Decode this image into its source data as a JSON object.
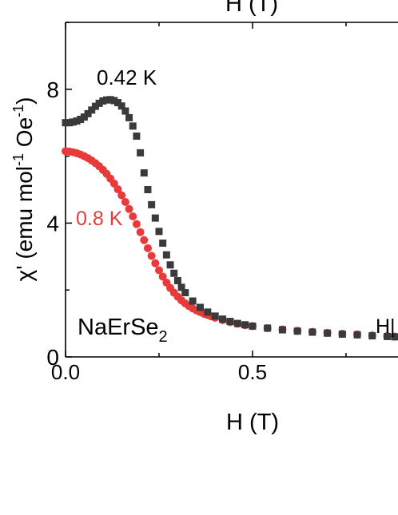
{
  "chart_data": {
    "type": "scatter",
    "top_axis_label": "H (T)",
    "xlabel": "H (T)",
    "ylabel": {
      "prefix": "χ' (emu mol",
      "exp1": "-1",
      "mid": " Oe",
      "exp2": "-1",
      "suffix": ")"
    },
    "xlim": [
      0,
      0.88
    ],
    "ylim": [
      0,
      10
    ],
    "x_ticks": [
      {
        "value": 0,
        "label": "0.0"
      },
      {
        "value": 0.5,
        "label": "0.5"
      }
    ],
    "y_ticks": [
      {
        "value": 0,
        "label": "0"
      },
      {
        "value": 4,
        "label": "4"
      },
      {
        "value": 8,
        "label": "8"
      }
    ],
    "grid": false,
    "sample_label": {
      "base": "NaErSe",
      "sub": "2"
    },
    "field_direction_label": "H|",
    "series": [
      {
        "name": "0.42 K",
        "color": "#3a3a3a",
        "marker": "square",
        "points": [
          [
            0.0,
            7.0
          ],
          [
            0.01,
            7.0
          ],
          [
            0.02,
            7.02
          ],
          [
            0.03,
            7.05
          ],
          [
            0.04,
            7.1
          ],
          [
            0.05,
            7.17
          ],
          [
            0.06,
            7.27
          ],
          [
            0.07,
            7.38
          ],
          [
            0.08,
            7.49
          ],
          [
            0.09,
            7.58
          ],
          [
            0.1,
            7.65
          ],
          [
            0.11,
            7.68
          ],
          [
            0.12,
            7.69
          ],
          [
            0.13,
            7.66
          ],
          [
            0.14,
            7.6
          ],
          [
            0.15,
            7.5
          ],
          [
            0.16,
            7.35
          ],
          [
            0.17,
            7.15
          ],
          [
            0.18,
            6.9
          ],
          [
            0.19,
            6.6
          ],
          [
            0.2,
            6.1
          ],
          [
            0.21,
            5.5
          ],
          [
            0.22,
            5.0
          ],
          [
            0.23,
            4.55
          ],
          [
            0.24,
            4.15
          ],
          [
            0.25,
            3.75
          ],
          [
            0.26,
            3.4
          ],
          [
            0.27,
            3.05
          ],
          [
            0.28,
            2.75
          ],
          [
            0.29,
            2.5
          ],
          [
            0.3,
            2.28
          ],
          [
            0.31,
            2.08
          ],
          [
            0.32,
            1.92
          ],
          [
            0.34,
            1.67
          ],
          [
            0.36,
            1.48
          ],
          [
            0.38,
            1.34
          ],
          [
            0.4,
            1.22
          ],
          [
            0.42,
            1.13
          ],
          [
            0.44,
            1.06
          ],
          [
            0.46,
            1.0
          ],
          [
            0.48,
            0.96
          ],
          [
            0.5,
            0.92
          ],
          [
            0.54,
            0.86
          ],
          [
            0.58,
            0.81
          ],
          [
            0.62,
            0.77
          ],
          [
            0.66,
            0.74
          ],
          [
            0.7,
            0.71
          ],
          [
            0.74,
            0.68
          ],
          [
            0.78,
            0.66
          ],
          [
            0.82,
            0.63
          ],
          [
            0.86,
            0.61
          ],
          [
            0.88,
            0.6
          ]
        ]
      },
      {
        "name": "0.8 K",
        "color": "#e83a3a",
        "marker": "circle",
        "points": [
          [
            0.0,
            6.15
          ],
          [
            0.01,
            6.14
          ],
          [
            0.02,
            6.12
          ],
          [
            0.03,
            6.09
          ],
          [
            0.04,
            6.05
          ],
          [
            0.05,
            6.0
          ],
          [
            0.06,
            5.94
          ],
          [
            0.07,
            5.87
          ],
          [
            0.08,
            5.79
          ],
          [
            0.09,
            5.7
          ],
          [
            0.1,
            5.59
          ],
          [
            0.11,
            5.47
          ],
          [
            0.12,
            5.33
          ],
          [
            0.13,
            5.18
          ],
          [
            0.14,
            5.01
          ],
          [
            0.15,
            4.83
          ],
          [
            0.16,
            4.63
          ],
          [
            0.17,
            4.42
          ],
          [
            0.18,
            4.2
          ],
          [
            0.19,
            3.97
          ],
          [
            0.2,
            3.73
          ],
          [
            0.21,
            3.49
          ],
          [
            0.22,
            3.25
          ],
          [
            0.23,
            3.02
          ],
          [
            0.24,
            2.8
          ],
          [
            0.25,
            2.59
          ],
          [
            0.26,
            2.4
          ],
          [
            0.27,
            2.22
          ],
          [
            0.28,
            2.06
          ],
          [
            0.29,
            1.92
          ],
          [
            0.3,
            1.8
          ],
          [
            0.31,
            1.69
          ],
          [
            0.32,
            1.6
          ],
          [
            0.33,
            1.52
          ],
          [
            0.34,
            1.45
          ],
          [
            0.35,
            1.39
          ],
          [
            0.36,
            1.34
          ],
          [
            0.37,
            1.29
          ],
          [
            0.38,
            1.25
          ],
          [
            0.39,
            1.21
          ],
          [
            0.4,
            1.17
          ],
          [
            0.42,
            1.1
          ],
          [
            0.44,
            1.04
          ],
          [
            0.46,
            0.99
          ],
          [
            0.48,
            0.95
          ],
          [
            0.5,
            0.92
          ],
          [
            0.54,
            0.86
          ],
          [
            0.58,
            0.82
          ],
          [
            0.62,
            0.78
          ],
          [
            0.66,
            0.75
          ],
          [
            0.7,
            0.72
          ],
          [
            0.74,
            0.69
          ],
          [
            0.78,
            0.67
          ],
          [
            0.82,
            0.64
          ],
          [
            0.86,
            0.62
          ],
          [
            0.88,
            0.61
          ]
        ]
      }
    ]
  }
}
